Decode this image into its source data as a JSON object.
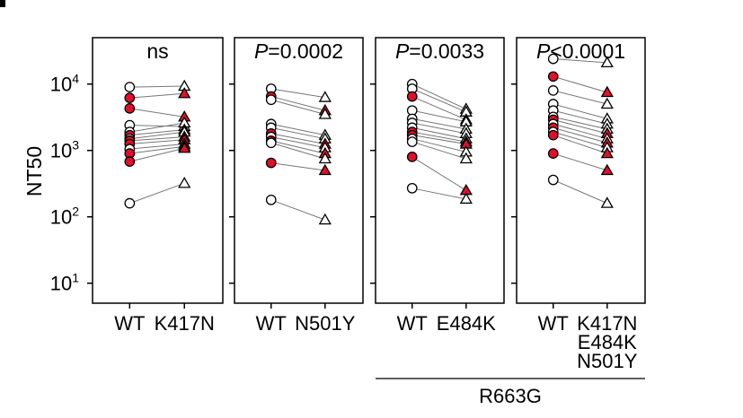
{
  "figure": {
    "ylabel": "NT50",
    "y_ticks": [
      {
        "base": "10",
        "exp": "1",
        "value": 10
      },
      {
        "base": "10",
        "exp": "2",
        "value": 100
      },
      {
        "base": "10",
        "exp": "3",
        "value": 1000
      },
      {
        "base": "10",
        "exp": "4",
        "value": 10000
      }
    ],
    "group_label": "R663G",
    "colors": {
      "highlight": "#e0102a",
      "open": "#ffffff",
      "stroke": "#000000",
      "pairline": "#777777"
    }
  },
  "chart_data": [
    {
      "type": "scatter",
      "annotation": {
        "prefix": "",
        "text": "ns"
      },
      "x_categories": [
        [
          "WT"
        ],
        [
          "K417N"
        ]
      ],
      "y_scale": "log",
      "ylim": [
        5,
        50000
      ],
      "pairs": [
        {
          "wt": 9000,
          "mut": 9300,
          "highlight": false
        },
        {
          "wt": 6200,
          "mut": 7200,
          "highlight": true
        },
        {
          "wt": 4300,
          "mut": 3200,
          "highlight": true
        },
        {
          "wt": 2400,
          "mut": 2300,
          "highlight": false
        },
        {
          "wt": 1900,
          "mut": 2600,
          "highlight": false
        },
        {
          "wt": 1700,
          "mut": 2050,
          "highlight": true
        },
        {
          "wt": 1500,
          "mut": 1900,
          "highlight": false
        },
        {
          "wt": 1400,
          "mut": 1600,
          "highlight": true
        },
        {
          "wt": 1250,
          "mut": 1450,
          "highlight": true
        },
        {
          "wt": 1050,
          "mut": 1250,
          "highlight": false
        },
        {
          "wt": 900,
          "mut": 1150,
          "highlight": true
        },
        {
          "wt": 680,
          "mut": 1080,
          "highlight": true
        },
        {
          "wt": 160,
          "mut": 320,
          "highlight": false
        }
      ]
    },
    {
      "type": "scatter",
      "annotation": {
        "prefix": "P",
        "text": "=0.0002"
      },
      "x_categories": [
        [
          "WT"
        ],
        [
          "N501Y"
        ]
      ],
      "y_scale": "log",
      "ylim": [
        5,
        50000
      ],
      "pairs": [
        {
          "wt": 8500,
          "mut": 6300,
          "highlight": false
        },
        {
          "wt": 6500,
          "mut": 4000,
          "highlight": true
        },
        {
          "wt": 5800,
          "mut": 3500,
          "highlight": false
        },
        {
          "wt": 2500,
          "mut": 1700,
          "highlight": false
        },
        {
          "wt": 2200,
          "mut": 1500,
          "highlight": false
        },
        {
          "wt": 1800,
          "mut": 1250,
          "highlight": true
        },
        {
          "wt": 1600,
          "mut": 1100,
          "highlight": false
        },
        {
          "wt": 1400,
          "mut": 900,
          "highlight": true
        },
        {
          "wt": 1300,
          "mut": 750,
          "highlight": false
        },
        {
          "wt": 650,
          "mut": 500,
          "highlight": true
        },
        {
          "wt": 180,
          "mut": 90,
          "highlight": false
        }
      ]
    },
    {
      "type": "scatter",
      "annotation": {
        "prefix": "P",
        "text": "=0.0033"
      },
      "x_categories": [
        [
          "WT"
        ],
        [
          "E484K"
        ]
      ],
      "y_scale": "log",
      "ylim": [
        5,
        50000
      ],
      "pairs": [
        {
          "wt": 10000,
          "mut": 4200,
          "highlight": false
        },
        {
          "wt": 8500,
          "mut": 3800,
          "highlight": false
        },
        {
          "wt": 6500,
          "mut": 2900,
          "highlight": true
        },
        {
          "wt": 4000,
          "mut": 2700,
          "highlight": false
        },
        {
          "wt": 3000,
          "mut": 2100,
          "highlight": false
        },
        {
          "wt": 2600,
          "mut": 1800,
          "highlight": false
        },
        {
          "wt": 2200,
          "mut": 1500,
          "highlight": false
        },
        {
          "wt": 1900,
          "mut": 1350,
          "highlight": true
        },
        {
          "wt": 1700,
          "mut": 1250,
          "highlight": true
        },
        {
          "wt": 1500,
          "mut": 950,
          "highlight": false
        },
        {
          "wt": 1350,
          "mut": 750,
          "highlight": false
        },
        {
          "wt": 800,
          "mut": 250,
          "highlight": true
        },
        {
          "wt": 270,
          "mut": 185,
          "highlight": false
        }
      ]
    },
    {
      "type": "scatter",
      "annotation": {
        "prefix": "P",
        "text": "<0.0001"
      },
      "x_categories": [
        [
          "WT"
        ],
        [
          "K417N",
          "E484K",
          "N501Y"
        ]
      ],
      "y_scale": "log",
      "ylim": [
        5,
        50000
      ],
      "pairs": [
        {
          "wt": 24000,
          "mut": 21000,
          "highlight": false
        },
        {
          "wt": 13000,
          "mut": 7500,
          "highlight": true
        },
        {
          "wt": 8000,
          "mut": 5000,
          "highlight": false
        },
        {
          "wt": 5000,
          "mut": 3000,
          "highlight": false
        },
        {
          "wt": 4000,
          "mut": 2500,
          "highlight": false
        },
        {
          "wt": 3200,
          "mut": 2100,
          "highlight": false
        },
        {
          "wt": 2900,
          "mut": 1800,
          "highlight": true
        },
        {
          "wt": 2500,
          "mut": 1500,
          "highlight": false
        },
        {
          "wt": 2200,
          "mut": 1300,
          "highlight": true
        },
        {
          "wt": 1900,
          "mut": 1100,
          "highlight": false
        },
        {
          "wt": 1700,
          "mut": 900,
          "highlight": true
        },
        {
          "wt": 900,
          "mut": 500,
          "highlight": true
        },
        {
          "wt": 360,
          "mut": 160,
          "highlight": false
        }
      ]
    }
  ]
}
